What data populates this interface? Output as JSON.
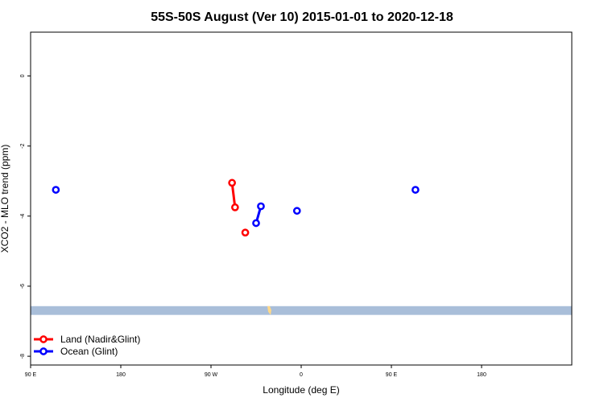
{
  "chart_data": {
    "type": "scatter",
    "title": "55S-50S August (Ver 10)   2015-01-01 to 2020-12-18",
    "xlabel": "Longitude (deg E)",
    "ylabel": "XCO2 - MLO trend (ppm)",
    "xlim": [
      -270,
      -180
    ],
    "ylim": [
      -8.25,
      1.25
    ],
    "x_ticks": [
      {
        "value": -270,
        "label": "90 E"
      },
      {
        "value": -255,
        "label": "180"
      },
      {
        "value": -240,
        "label": "90 W"
      },
      {
        "value": -225,
        "label": "0"
      },
      {
        "value": -210,
        "label": "90 E"
      },
      {
        "value": -195,
        "label": "180"
      }
    ],
    "y_ticks": [
      {
        "value": 0,
        "label": "0"
      },
      {
        "value": -2,
        "label": "-2"
      },
      {
        "value": -4,
        "label": "-4"
      },
      {
        "value": -6,
        "label": "-6"
      },
      {
        "value": -8,
        "label": "-8"
      }
    ],
    "legend": {
      "position": "bottom-left"
    },
    "series": [
      {
        "name": "Land (Nadir&Glint)",
        "color": "#ff0000",
        "points": [
          {
            "x": -236.5,
            "y": -3.05
          },
          {
            "x": -236.0,
            "y": -3.75
          },
          {
            "x": -234.3,
            "y": -4.47
          }
        ],
        "segments": [
          [
            0,
            1
          ]
        ]
      },
      {
        "name": "Ocean (Glint)",
        "color": "#0000ff",
        "points": [
          {
            "x": -265.8,
            "y": -3.25
          },
          {
            "x": -232.5,
            "y": -4.2
          },
          {
            "x": -231.7,
            "y": -3.72
          },
          {
            "x": -225.7,
            "y": -3.85
          },
          {
            "x": -206.0,
            "y": -3.25
          }
        ],
        "segments": [
          [
            1,
            2
          ]
        ]
      }
    ],
    "map_band": {
      "y_top": -6.57,
      "y_bottom": -6.82,
      "ocean_color": "#a9bed9",
      "land_color": "#ffd98a"
    }
  }
}
